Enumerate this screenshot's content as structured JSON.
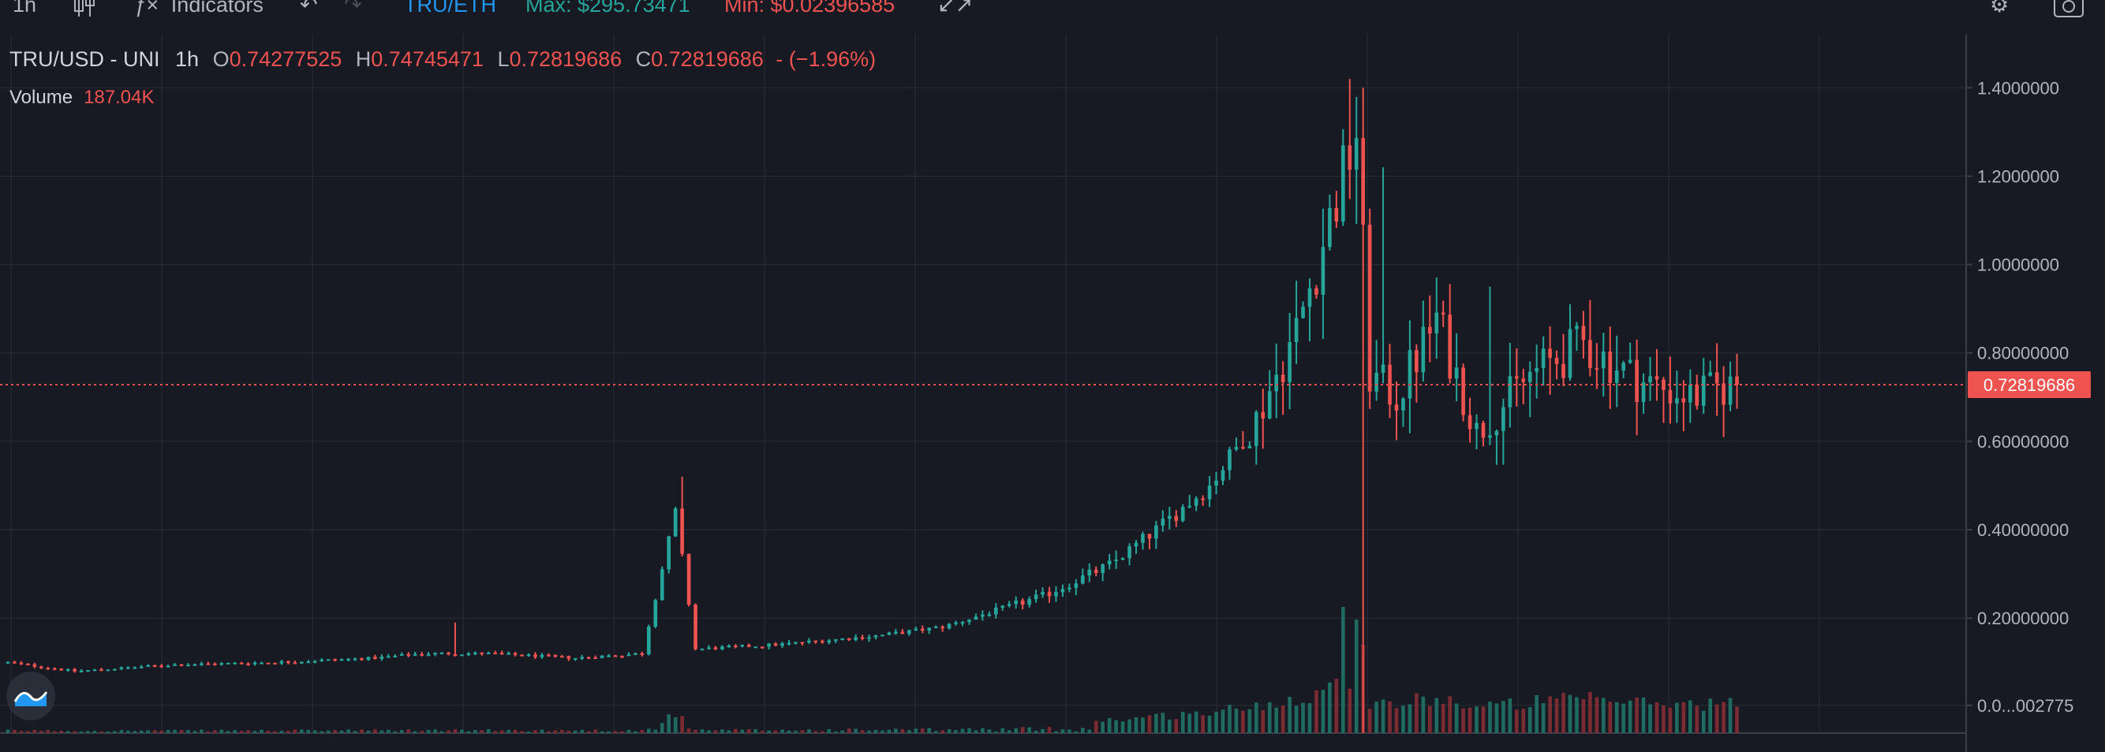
{
  "toolbar": {
    "interval": "1h",
    "indicators_label": "Indicators",
    "pair": "TRU/ETH",
    "max_label": "Max: $295.73471",
    "min_label": "Min: $0.02396585"
  },
  "legend": {
    "symbol": "TRU/USD - UNI",
    "interval": "1h",
    "o_key": "O",
    "o_val": "0.74277525",
    "h_key": "H",
    "h_val": "0.74745471",
    "l_key": "L",
    "l_val": "0.72819686",
    "c_key": "C",
    "c_val": "0.72819686",
    "change": "- (−1.96%)"
  },
  "volume": {
    "label": "Volume",
    "value": "187.04K"
  },
  "colors": {
    "background": "#171923",
    "grid": "#2a2e39",
    "up": "#26a69a",
    "down": "#ef5350",
    "up_volume": "#1f6a61",
    "down_volume": "#7a2c32",
    "price_line": "#ef5350",
    "pair": "#2196f3",
    "max": "#26a69a",
    "min": "#ef5350"
  },
  "chart_data": {
    "type": "candlestick",
    "y_axis": {
      "ticks": [
        1.4,
        1.2,
        1.0,
        0.8,
        0.6,
        0.4,
        0.2,
        0.002775
      ],
      "tick_labels": [
        "1.4000000",
        "1.2000000",
        "1.0000000",
        "0.80000000",
        "0.60000000",
        "0.40000000",
        "0.20000000",
        "0.0...002775"
      ],
      "range": [
        -0.06,
        1.52
      ]
    },
    "current_price": 0.72819686,
    "current_price_label": "0.72819686",
    "grid": true,
    "keypoints": [
      [
        0,
        0.1
      ],
      [
        10,
        0.08
      ],
      [
        25,
        0.095
      ],
      [
        40,
        0.1
      ],
      [
        55,
        0.11
      ],
      [
        62,
        0.12
      ],
      [
        72,
        0.12
      ],
      [
        85,
        0.11
      ],
      [
        95,
        0.12
      ],
      [
        100,
        0.44
      ],
      [
        103,
        0.13
      ],
      [
        115,
        0.14
      ],
      [
        130,
        0.16
      ],
      [
        140,
        0.18
      ],
      [
        155,
        0.25
      ],
      [
        165,
        0.32
      ],
      [
        172,
        0.4
      ],
      [
        180,
        0.5
      ],
      [
        187,
        0.65
      ],
      [
        193,
        0.85
      ],
      [
        198,
        1.1
      ],
      [
        202,
        1.3
      ],
      [
        204,
        0.75
      ],
      [
        208,
        0.7
      ],
      [
        214,
        0.88
      ],
      [
        220,
        0.62
      ],
      [
        228,
        0.75
      ],
      [
        236,
        0.82
      ],
      [
        244,
        0.74
      ],
      [
        252,
        0.7
      ],
      [
        259,
        0.73
      ]
    ],
    "spikes": [
      {
        "i": 67,
        "high": 0.19
      },
      {
        "i": 101,
        "high": 0.52
      },
      {
        "i": 186,
        "high": 0.6
      },
      {
        "i": 201,
        "high": 1.42
      },
      {
        "i": 203,
        "high": 1.4,
        "low": -0.06
      },
      {
        "i": 206,
        "high": 1.22
      },
      {
        "i": 222,
        "high": 0.95
      },
      {
        "i": 237,
        "high": 0.92
      },
      {
        "i": 257,
        "high": 0.77
      }
    ],
    "volume_spikes": [
      {
        "i": 200,
        "v": 1.0
      },
      {
        "i": 202,
        "v": 0.9
      },
      {
        "i": 203,
        "v": 0.7
      }
    ],
    "candle_count": 260
  }
}
